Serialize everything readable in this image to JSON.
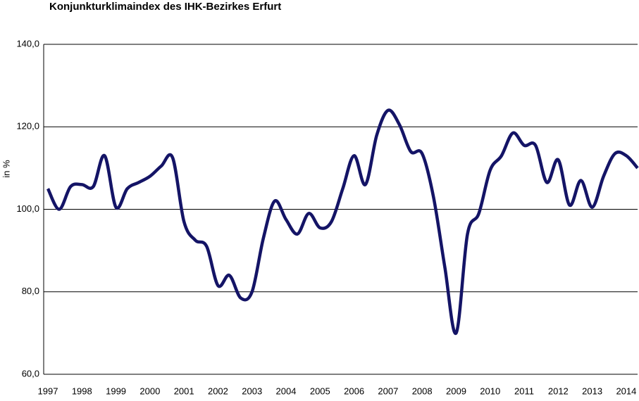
{
  "chart_data": {
    "type": "line",
    "title": "Konjunkturklimaindex des IHK-Bezirkes Erfurt",
    "y_label": "in %",
    "categories": [
      "1997",
      null,
      null,
      "1998",
      null,
      null,
      "1999",
      null,
      null,
      "2000",
      null,
      null,
      "2001",
      null,
      null,
      "2002",
      null,
      null,
      "2003",
      null,
      null,
      "2004",
      null,
      null,
      "2005",
      null,
      null,
      "2006",
      null,
      null,
      "2007",
      null,
      null,
      "2008",
      null,
      null,
      "2009",
      null,
      null,
      "2010",
      null,
      null,
      "2011",
      null,
      null,
      "2012",
      null,
      null,
      "2013",
      null,
      null,
      "2014",
      null
    ],
    "series": [
      {
        "name": "Konjunkturklimaindex",
        "color": "#141466",
        "values": [
          105,
          100,
          105.5,
          106,
          105.5,
          113,
          100.5,
          105,
          106.5,
          108,
          110.5,
          112.5,
          97,
          92.5,
          91,
          81.5,
          84,
          78.5,
          80,
          93,
          102,
          97.5,
          94,
          99,
          95.5,
          97,
          105,
          113,
          106,
          118,
          124,
          120.5,
          114,
          113.5,
          103,
          86,
          70,
          94,
          99,
          109.5,
          113,
          118.5,
          115.5,
          115.5,
          106.5,
          112,
          101,
          107,
          100.5,
          108,
          113.5,
          113,
          110
        ]
      }
    ],
    "ylim": [
      60,
      140
    ],
    "yticks": [
      {
        "value": 60,
        "label": "60,0"
      },
      {
        "value": 80,
        "label": "80,0"
      },
      {
        "value": 100,
        "label": "100,0"
      },
      {
        "value": 120,
        "label": "120,0"
      },
      {
        "value": 140,
        "label": "140,0"
      }
    ],
    "grid": true
  }
}
